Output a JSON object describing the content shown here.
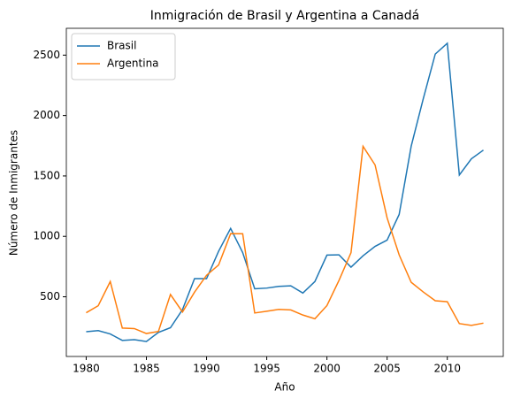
{
  "chart_data": {
    "type": "line",
    "title": "Inmigración de Brasil y Argentina a Canadá",
    "xlabel": "Año",
    "ylabel": "Número de Inmigrantes",
    "x": [
      1980,
      1981,
      1982,
      1983,
      1984,
      1985,
      1986,
      1987,
      1988,
      1989,
      1990,
      1991,
      1992,
      1993,
      1994,
      1995,
      1996,
      1997,
      1998,
      1999,
      2000,
      2001,
      2002,
      2003,
      2004,
      2005,
      2006,
      2007,
      2008,
      2009,
      2010,
      2011,
      2012,
      2013
    ],
    "series": [
      {
        "name": "Brasil",
        "color": "#1f77b4",
        "values": [
          211,
          220,
          192,
          139,
          145,
          130,
          205,
          244,
          394,
          650,
          650,
          877,
          1066,
          866,
          566,
          572,
          586,
          591,
          531,
          626,
          845,
          847,
          745,
          839,
          917,
          969,
          1181,
          1746,
          2138,
          2509,
          2598,
          1508,
          1642,
          1714
        ]
      },
      {
        "name": "Argentina",
        "color": "#ff7f0e",
        "values": [
          368,
          426,
          626,
          241,
          237,
          196,
          213,
          519,
          374,
          538,
          678,
          763,
          1023,
          1022,
          366,
          380,
          396,
          391,
          349,
          318,
          427,
          635,
          865,
          1745,
          1591,
          1153,
          847,
          620,
          540,
          467,
          459,
          278,
          263,
          282
        ]
      }
    ],
    "xlim": [
      1978.35,
      2014.65
    ],
    "xticks": [
      1980,
      1985,
      1990,
      1995,
      2000,
      2005,
      2010
    ],
    "ylim": [
      6,
      2722
    ],
    "yticks": [
      500,
      1000,
      1500,
      2000,
      2500
    ],
    "legend": "upper left"
  }
}
